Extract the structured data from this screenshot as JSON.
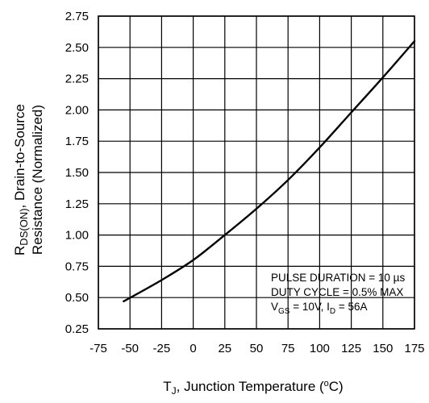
{
  "chart_data": {
    "type": "line",
    "title": "",
    "xlabel": "T<sub>J</sub>, Junction Temperature (°C)",
    "xlabel_parts": {
      "T": "T",
      "J": "J",
      "rest": ", Junction Temperature (",
      "deg": "o",
      "unit": "C)"
    },
    "ylabel_line1_parts": {
      "R": "R",
      "sub": "DS(ON)",
      "rest": ", Drain-to-Source"
    },
    "ylabel_line2": "Resistance (Normalized)",
    "xlim": [
      -75,
      175
    ],
    "ylim": [
      0.25,
      2.75
    ],
    "x_ticks": [
      "-75",
      "-50",
      "-25",
      "0",
      "25",
      "50",
      "75",
      "100",
      "125",
      "150",
      "175"
    ],
    "y_ticks": [
      "0.25",
      "0.50",
      "0.75",
      "1.00",
      "1.25",
      "1.50",
      "1.75",
      "2.00",
      "2.25",
      "2.50",
      "2.75"
    ],
    "grid": true,
    "series": [
      {
        "x": [
          -55,
          -25,
          0,
          25,
          50,
          75,
          100,
          125,
          150,
          175
        ],
        "y": [
          0.47,
          0.64,
          0.8,
          1.0,
          1.21,
          1.44,
          1.7,
          1.98,
          2.26,
          2.55
        ]
      }
    ],
    "annotations": {
      "line1": "PULSE DURATION = 10 µs",
      "line2": "DUTY CYCLE = 0.5% MAX",
      "line3_parts": {
        "V": "V",
        "GS": "GS",
        "mid": " = 10V, I",
        "D": "D",
        "end": " = 56A"
      }
    },
    "colors": {
      "line": "#000000",
      "grid": "#000000"
    }
  }
}
